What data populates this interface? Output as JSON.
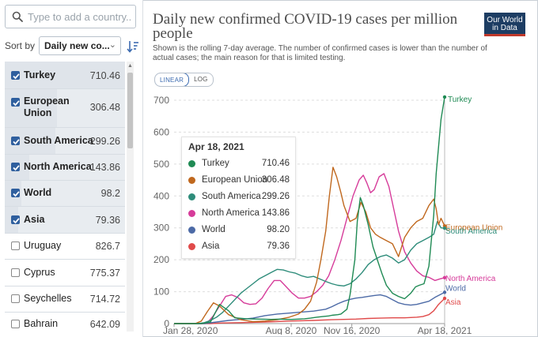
{
  "search": {
    "placeholder": "Type to add a country..."
  },
  "sort": {
    "label": "Sort by",
    "value": "Daily new co..."
  },
  "countries": [
    {
      "name": "Turkey",
      "value": "710.46",
      "checked": true
    },
    {
      "name": "European Union",
      "value": "306.48",
      "checked": true
    },
    {
      "name": "South America",
      "value": "299.26",
      "checked": true
    },
    {
      "name": "North America",
      "value": "143.86",
      "checked": true
    },
    {
      "name": "World",
      "value": "98.2",
      "checked": true
    },
    {
      "name": "Asia",
      "value": "79.36",
      "checked": true
    },
    {
      "name": "Uruguay",
      "value": "826.7",
      "checked": false
    },
    {
      "name": "Cyprus",
      "value": "775.37",
      "checked": false
    },
    {
      "name": "Seychelles",
      "value": "714.72",
      "checked": false
    },
    {
      "name": "Bahrain",
      "value": "642.09",
      "checked": false
    }
  ],
  "header": {
    "title": "Daily new confirmed COVID-19 cases per million people",
    "subtitle": "Shown is the rolling 7-day average. The number of confirmed cases is lower than the number of actual cases; the main reason for that is limited testing.",
    "logo_line1": "Our World",
    "logo_line2": "in Data"
  },
  "scale_toggle": {
    "linear": "LINEAR",
    "log": "LOG"
  },
  "tooltip": {
    "date": "Apr 18, 2021",
    "rows": [
      {
        "name": "Turkey",
        "value": "710.46"
      },
      {
        "name": "European Union",
        "value": "306.48"
      },
      {
        "name": "South America",
        "value": "299.26"
      },
      {
        "name": "North America",
        "value": "143.86"
      },
      {
        "name": "World",
        "value": "98.20"
      },
      {
        "name": "Asia",
        "value": "79.36"
      }
    ]
  },
  "chart_data": {
    "type": "line",
    "title": "Daily new confirmed COVID-19 cases per million people",
    "xlabel": "",
    "ylabel": "",
    "ylim": [
      0,
      700
    ],
    "yticks": [
      0,
      100,
      200,
      300,
      400,
      500,
      600,
      700
    ],
    "xtick_labels": [
      "Jan 28, 2020",
      "Aug 8, 2020",
      "Nov 16, 2020",
      "Apr 18, 2021"
    ],
    "xtick_days": [
      0,
      193,
      293,
      446
    ],
    "grid": true,
    "series": [
      {
        "name": "Turkey",
        "color": "#1f8a54",
        "x": [
          0,
          45,
          60,
          75,
          90,
          100,
          120,
          140,
          160,
          175,
          185,
          195,
          205,
          215,
          225,
          235,
          245,
          255,
          260,
          270,
          275,
          285,
          290,
          298,
          302,
          307,
          312,
          320,
          328,
          335,
          343,
          350,
          360,
          370,
          380,
          390,
          398,
          404,
          412,
          420,
          428,
          432,
          440,
          446
        ],
        "y": [
          0,
          0,
          5,
          60,
          40,
          18,
          15,
          14,
          13,
          14,
          13,
          13,
          14,
          15,
          17,
          20,
          22,
          24,
          26,
          28,
          30,
          45,
          90,
          200,
          320,
          395,
          370,
          310,
          240,
          200,
          155,
          120,
          95,
          85,
          78,
          95,
          115,
          120,
          125,
          180,
          340,
          470,
          640,
          710
        ]
      },
      {
        "name": "European Union",
        "color": "#c0681e",
        "x": [
          0,
          35,
          45,
          55,
          65,
          75,
          90,
          110,
          130,
          150,
          170,
          190,
          205,
          215,
          225,
          235,
          242,
          250,
          256,
          262,
          268,
          275,
          280,
          290,
          300,
          308,
          316,
          324,
          332,
          340,
          350,
          360,
          370,
          380,
          390,
          400,
          410,
          420,
          428,
          432,
          436,
          440,
          446
        ],
        "y": [
          0,
          0,
          8,
          38,
          65,
          55,
          28,
          12,
          6,
          8,
          12,
          20,
          30,
          45,
          70,
          130,
          200,
          290,
          400,
          490,
          460,
          410,
          370,
          320,
          330,
          380,
          350,
          300,
          280,
          270,
          260,
          250,
          210,
          270,
          300,
          320,
          330,
          370,
          390,
          360,
          310,
          330,
          306
        ]
      },
      {
        "name": "South America",
        "color": "#2e8c7a",
        "x": [
          0,
          40,
          50,
          60,
          70,
          80,
          90,
          100,
          110,
          120,
          130,
          140,
          150,
          160,
          170,
          180,
          190,
          200,
          210,
          220,
          230,
          240,
          250,
          260,
          270,
          280,
          290,
          300,
          310,
          320,
          330,
          340,
          350,
          360,
          370,
          380,
          390,
          400,
          410,
          420,
          428,
          434,
          440,
          446
        ],
        "y": [
          0,
          0,
          3,
          10,
          20,
          35,
          55,
          75,
          95,
          110,
          125,
          140,
          150,
          160,
          170,
          168,
          162,
          158,
          150,
          145,
          148,
          140,
          132,
          125,
          120,
          118,
          125,
          140,
          160,
          185,
          200,
          210,
          215,
          205,
          190,
          200,
          230,
          250,
          260,
          270,
          280,
          320,
          300,
          299
        ]
      },
      {
        "name": "North America",
        "color": "#d63c9a",
        "x": [
          0,
          45,
          55,
          65,
          75,
          85,
          95,
          105,
          115,
          125,
          135,
          145,
          155,
          165,
          175,
          185,
          195,
          205,
          215,
          225,
          235,
          245,
          255,
          265,
          275,
          285,
          295,
          305,
          312,
          318,
          324,
          330,
          338,
          346,
          354,
          362,
          370,
          380,
          390,
          400,
          410,
          420,
          430,
          438,
          446
        ],
        "y": [
          0,
          0,
          3,
          25,
          55,
          85,
          90,
          82,
          65,
          60,
          62,
          80,
          110,
          135,
          135,
          115,
          95,
          80,
          80,
          85,
          100,
          120,
          150,
          200,
          260,
          330,
          400,
          450,
          465,
          440,
          410,
          420,
          460,
          470,
          430,
          360,
          290,
          225,
          190,
          165,
          150,
          145,
          135,
          140,
          144
        ]
      },
      {
        "name": "World",
        "color": "#4c6aa6",
        "x": [
          0,
          50,
          70,
          90,
          110,
          130,
          150,
          170,
          190,
          210,
          230,
          250,
          260,
          270,
          280,
          290,
          300,
          310,
          320,
          330,
          340,
          350,
          360,
          370,
          380,
          390,
          400,
          410,
          420,
          430,
          446
        ],
        "y": [
          0,
          0,
          5,
          10,
          13,
          17,
          25,
          30,
          33,
          36,
          39,
          45,
          53,
          62,
          70,
          76,
          80,
          82,
          85,
          88,
          90,
          85,
          75,
          65,
          60,
          58,
          60,
          65,
          70,
          82,
          98
        ]
      },
      {
        "name": "Asia",
        "color": "#e04a4a",
        "x": [
          0,
          60,
          80,
          110,
          150,
          190,
          230,
          260,
          280,
          300,
          320,
          340,
          360,
          380,
          400,
          410,
          420,
          428,
          436,
          446
        ],
        "y": [
          0,
          0,
          2,
          3,
          5,
          8,
          10,
          12,
          13,
          14,
          16,
          17,
          18,
          18,
          20,
          22,
          28,
          40,
          60,
          79
        ]
      }
    ],
    "end_labels": [
      {
        "name": "Turkey"
      },
      {
        "name": "European Union"
      },
      {
        "name": "South America"
      },
      {
        "name": "North America"
      },
      {
        "name": "World"
      },
      {
        "name": "Asia"
      }
    ]
  }
}
